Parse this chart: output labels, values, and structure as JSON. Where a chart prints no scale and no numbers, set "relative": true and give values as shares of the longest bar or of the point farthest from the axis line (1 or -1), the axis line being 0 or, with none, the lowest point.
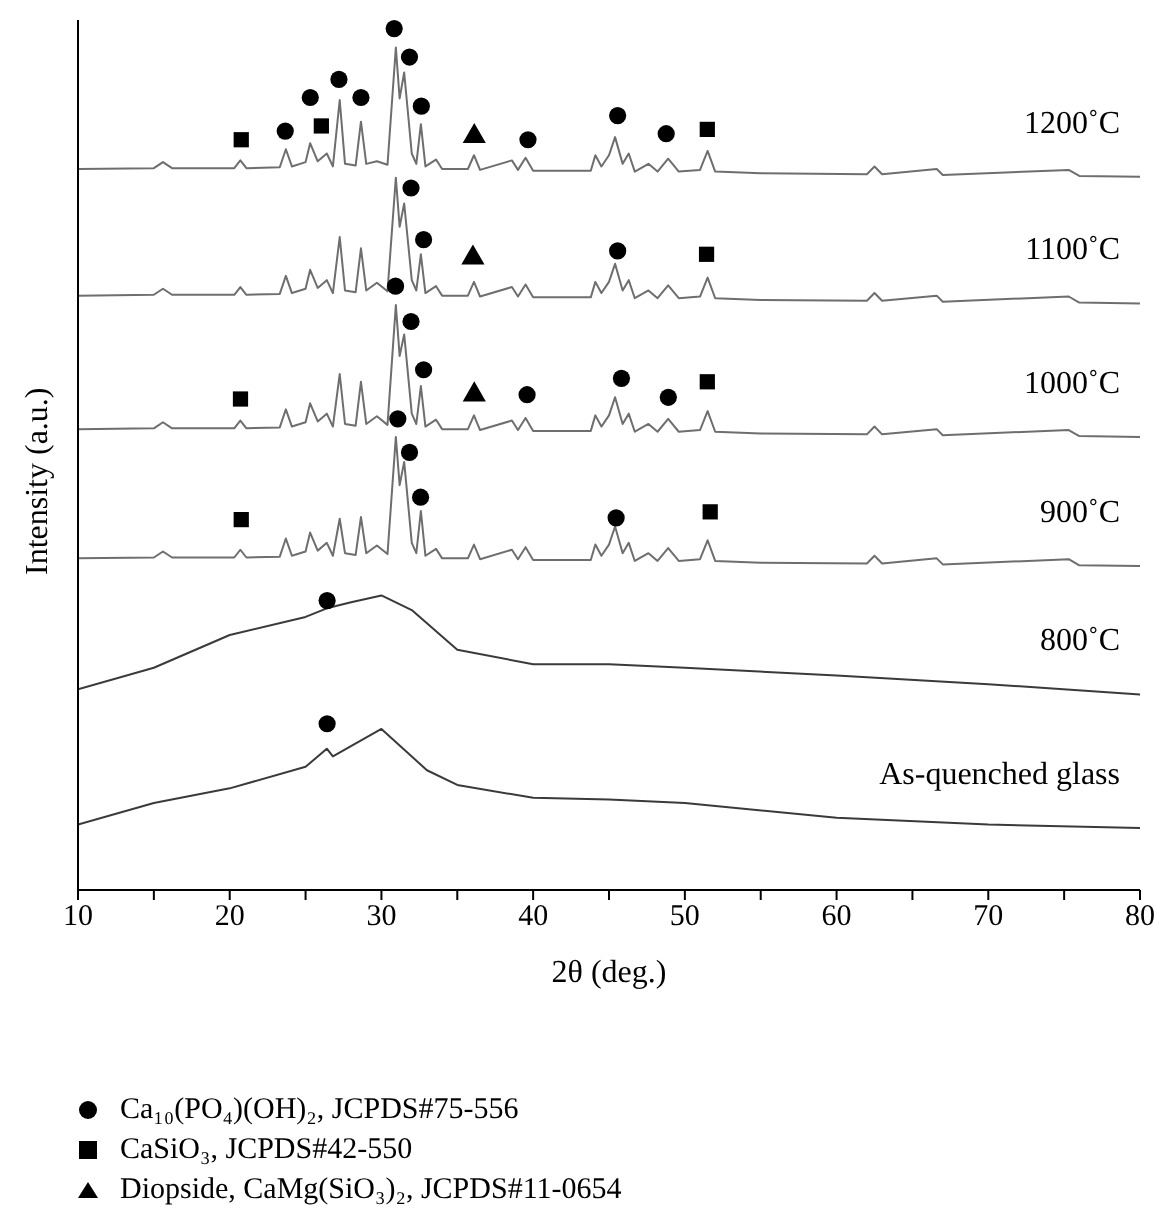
{
  "chart_data": {
    "type": "line",
    "relative": true,
    "xlabel": "2θ (deg.)",
    "ylabel": "Intensity (a.u.)",
    "xlim": [
      10,
      80
    ],
    "xticks": [
      10,
      {
        "value": 15,
        "label": null
      },
      20,
      {
        "value": 25,
        "label": null
      },
      30,
      {
        "value": 35,
        "label": null
      },
      40,
      {
        "value": 45,
        "label": null
      },
      50,
      {
        "value": 55,
        "label": null
      },
      60,
      {
        "value": 65,
        "label": null
      },
      70,
      {
        "value": 75,
        "label": null
      },
      80
    ],
    "legend": "bottom",
    "series": [
      {
        "name": "1200˚C",
        "color": "#6e6e6e",
        "marker": "none",
        "x": [
          10,
          15,
          15.6,
          16.2,
          20.3,
          20.7,
          21.1,
          23.3,
          23.7,
          24.1,
          25.0,
          25.3,
          25.8,
          26.4,
          26.8,
          27.25,
          27.6,
          28.3,
          28.65,
          29.0,
          29.7,
          30.4,
          30.95,
          31.2,
          31.5,
          32.0,
          32.3,
          32.6,
          32.9,
          33.6,
          34.0,
          35.7,
          36.1,
          36.5,
          38.6,
          39.0,
          39.5,
          40.0,
          43.8,
          44.1,
          44.5,
          45.0,
          45.4,
          45.9,
          46.3,
          46.7,
          47.6,
          48.2,
          48.9,
          49.6,
          51.0,
          51.5,
          52.0,
          55,
          62.0,
          62.5,
          63.0,
          66.6,
          67,
          75.3,
          76,
          80
        ],
        "values": [
          0.837,
          0.838,
          0.845,
          0.838,
          0.838,
          0.847,
          0.838,
          0.839,
          0.86,
          0.84,
          0.845,
          0.867,
          0.846,
          0.855,
          0.84,
          0.917,
          0.843,
          0.841,
          0.892,
          0.843,
          0.846,
          0.842,
          0.978,
          0.919,
          0.949,
          0.855,
          0.843,
          0.889,
          0.84,
          0.848,
          0.837,
          0.837,
          0.853,
          0.836,
          0.847,
          0.836,
          0.85,
          0.835,
          0.835,
          0.853,
          0.84,
          0.853,
          0.874,
          0.843,
          0.855,
          0.834,
          0.843,
          0.834,
          0.849,
          0.834,
          0.836,
          0.858,
          0.834,
          0.832,
          0.831,
          0.84,
          0.831,
          0.837,
          0.83,
          0.836,
          0.829,
          0.828
        ]
      },
      {
        "name": "1100˚C",
        "color": "#6e6e6e",
        "marker": "none",
        "x": [
          10,
          15,
          15.6,
          16.2,
          20.3,
          20.7,
          21.1,
          23.3,
          23.7,
          24.1,
          25.0,
          25.3,
          25.8,
          26.4,
          26.8,
          27.25,
          27.6,
          28.3,
          28.65,
          29.0,
          29.7,
          30.4,
          30.95,
          31.2,
          31.5,
          32.0,
          32.3,
          32.6,
          32.9,
          33.6,
          34.0,
          35.7,
          36.1,
          36.5,
          38.6,
          39.0,
          39.5,
          40.0,
          43.8,
          44.1,
          44.5,
          45.0,
          45.4,
          45.9,
          46.3,
          46.7,
          47.6,
          48.2,
          48.9,
          49.6,
          51.0,
          51.5,
          52.0,
          55,
          62.0,
          62.5,
          63.0,
          66.6,
          67,
          75.3,
          76,
          80
        ],
        "values": [
          0.69,
          0.691,
          0.698,
          0.691,
          0.691,
          0.7,
          0.691,
          0.692,
          0.713,
          0.693,
          0.698,
          0.72,
          0.699,
          0.708,
          0.693,
          0.758,
          0.696,
          0.694,
          0.745,
          0.696,
          0.705,
          0.695,
          0.827,
          0.77,
          0.797,
          0.708,
          0.696,
          0.738,
          0.693,
          0.701,
          0.69,
          0.69,
          0.706,
          0.689,
          0.7,
          0.689,
          0.703,
          0.688,
          0.688,
          0.706,
          0.693,
          0.706,
          0.727,
          0.696,
          0.708,
          0.687,
          0.696,
          0.687,
          0.702,
          0.687,
          0.689,
          0.711,
          0.687,
          0.685,
          0.684,
          0.693,
          0.684,
          0.69,
          0.683,
          0.689,
          0.682,
          0.681
        ]
      },
      {
        "name": "1000˚C",
        "color": "#6e6e6e",
        "marker": "none",
        "x": [
          10,
          15,
          15.6,
          16.2,
          20.3,
          20.7,
          21.1,
          23.3,
          23.7,
          24.1,
          25.0,
          25.3,
          25.8,
          26.4,
          26.8,
          27.25,
          27.6,
          28.3,
          28.65,
          29.0,
          29.7,
          30.4,
          30.95,
          31.2,
          31.5,
          32.0,
          32.3,
          32.6,
          32.9,
          33.6,
          34.0,
          35.7,
          36.1,
          36.5,
          38.6,
          39.0,
          39.5,
          40.0,
          43.8,
          44.1,
          44.5,
          45.0,
          45.4,
          45.9,
          46.3,
          46.7,
          47.6,
          48.2,
          48.9,
          49.6,
          51.0,
          51.5,
          52.0,
          55,
          62.0,
          62.5,
          63.0,
          66.6,
          67,
          75.3,
          76,
          80
        ],
        "values": [
          0.535,
          0.536,
          0.543,
          0.536,
          0.536,
          0.545,
          0.536,
          0.537,
          0.558,
          0.538,
          0.543,
          0.565,
          0.544,
          0.553,
          0.538,
          0.599,
          0.541,
          0.539,
          0.59,
          0.541,
          0.55,
          0.54,
          0.679,
          0.62,
          0.645,
          0.553,
          0.541,
          0.585,
          0.538,
          0.546,
          0.535,
          0.535,
          0.551,
          0.534,
          0.545,
          0.534,
          0.548,
          0.533,
          0.533,
          0.551,
          0.538,
          0.551,
          0.572,
          0.541,
          0.553,
          0.532,
          0.541,
          0.532,
          0.547,
          0.532,
          0.534,
          0.556,
          0.532,
          0.53,
          0.529,
          0.538,
          0.529,
          0.535,
          0.528,
          0.534,
          0.527,
          0.526
        ]
      },
      {
        "name": "900˚C",
        "color": "#6e6e6e",
        "marker": "none",
        "x": [
          10,
          15,
          15.6,
          16.2,
          20.3,
          20.7,
          21.1,
          23.3,
          23.7,
          24.1,
          25.0,
          25.3,
          25.8,
          26.4,
          26.8,
          27.25,
          27.6,
          28.3,
          28.65,
          29.0,
          29.7,
          30.4,
          30.95,
          31.2,
          31.5,
          32.0,
          32.3,
          32.6,
          32.9,
          33.6,
          34.0,
          35.7,
          36.1,
          36.5,
          38.6,
          39.0,
          39.5,
          40.0,
          43.8,
          44.1,
          44.5,
          45.0,
          45.4,
          45.9,
          46.3,
          46.7,
          47.6,
          48.2,
          48.9,
          49.6,
          51.0,
          51.5,
          52.0,
          55,
          62.0,
          62.5,
          63.0,
          66.6,
          67,
          75.3,
          76,
          80
        ],
        "values": [
          0.385,
          0.386,
          0.393,
          0.386,
          0.386,
          0.395,
          0.386,
          0.387,
          0.408,
          0.388,
          0.393,
          0.415,
          0.394,
          0.403,
          0.388,
          0.431,
          0.391,
          0.389,
          0.433,
          0.391,
          0.4,
          0.39,
          0.526,
          0.47,
          0.497,
          0.403,
          0.391,
          0.44,
          0.388,
          0.396,
          0.385,
          0.385,
          0.401,
          0.384,
          0.395,
          0.384,
          0.398,
          0.383,
          0.383,
          0.401,
          0.388,
          0.401,
          0.422,
          0.391,
          0.403,
          0.382,
          0.391,
          0.382,
          0.397,
          0.382,
          0.384,
          0.406,
          0.382,
          0.38,
          0.379,
          0.388,
          0.379,
          0.385,
          0.378,
          0.384,
          0.377,
          0.376
        ]
      },
      {
        "name": "800˚C",
        "color": "#3a3a3a",
        "marker": "none",
        "x": [
          10,
          15,
          20,
          25,
          26.4,
          28,
          30,
          32,
          35,
          40,
          45,
          50,
          60,
          70,
          80
        ],
        "values": [
          0.233,
          0.258,
          0.296,
          0.317,
          0.327,
          0.334,
          0.342,
          0.325,
          0.279,
          0.262,
          0.262,
          0.258,
          0.249,
          0.239,
          0.227
        ]
      },
      {
        "name": "As-quenched glass",
        "color": "#3a3a3a",
        "marker": "none",
        "x": [
          10,
          15,
          20,
          25,
          26.4,
          26.8,
          30,
          33,
          35,
          40,
          45,
          50,
          60,
          70,
          80
        ],
        "values": [
          0.076,
          0.101,
          0.118,
          0.143,
          0.164,
          0.155,
          0.187,
          0.139,
          0.122,
          0.107,
          0.105,
          0.101,
          0.084,
          0.076,
          0.072
        ]
      },
      {
        "name": "Ca₁₀(PO₄)(OH)₂, JCPDS#75-556",
        "type": "scatter",
        "color": "#000000",
        "marker": "circle",
        "x": [
          23.66,
          25.31,
          27.2,
          28.65,
          30.84,
          31.85,
          32.63,
          39.66,
          45.57,
          48.77,
          31.95,
          32.78,
          45.57,
          30.93,
          31.95,
          32.78,
          39.6,
          45.82,
          48.91,
          31.08,
          31.85,
          32.58,
          45.47,
          26.42,
          26.42
        ],
        "values": [
          0.881,
          0.92,
          0.941,
          0.92,
          1.0,
          0.967,
          0.91,
          0.871,
          0.899,
          0.878,
          0.815,
          0.755,
          0.742,
          0.701,
          0.66,
          0.604,
          0.575,
          0.594,
          0.572,
          0.547,
          0.508,
          0.456,
          0.432,
          0.336,
          0.193
        ]
      },
      {
        "name": "CaSiO₃, JCPDS#42-550",
        "type": "scatter",
        "color": "#000000",
        "marker": "square",
        "x": [
          20.76,
          26.04,
          51.48,
          51.43,
          20.71,
          51.48,
          20.76,
          51.67
        ],
        "values": [
          0.871,
          0.887,
          0.883,
          0.738,
          0.57,
          0.59,
          0.43,
          0.439
        ]
      },
      {
        "name": "Diopside, CaMg(SiO₃)₂, JCPDS#11-0654",
        "type": "scatter",
        "color": "#000000",
        "marker": "triangle",
        "x": [
          36.12,
          36.03,
          36.12
        ],
        "values": [
          0.875,
          0.734,
          0.575
        ]
      }
    ]
  }
}
